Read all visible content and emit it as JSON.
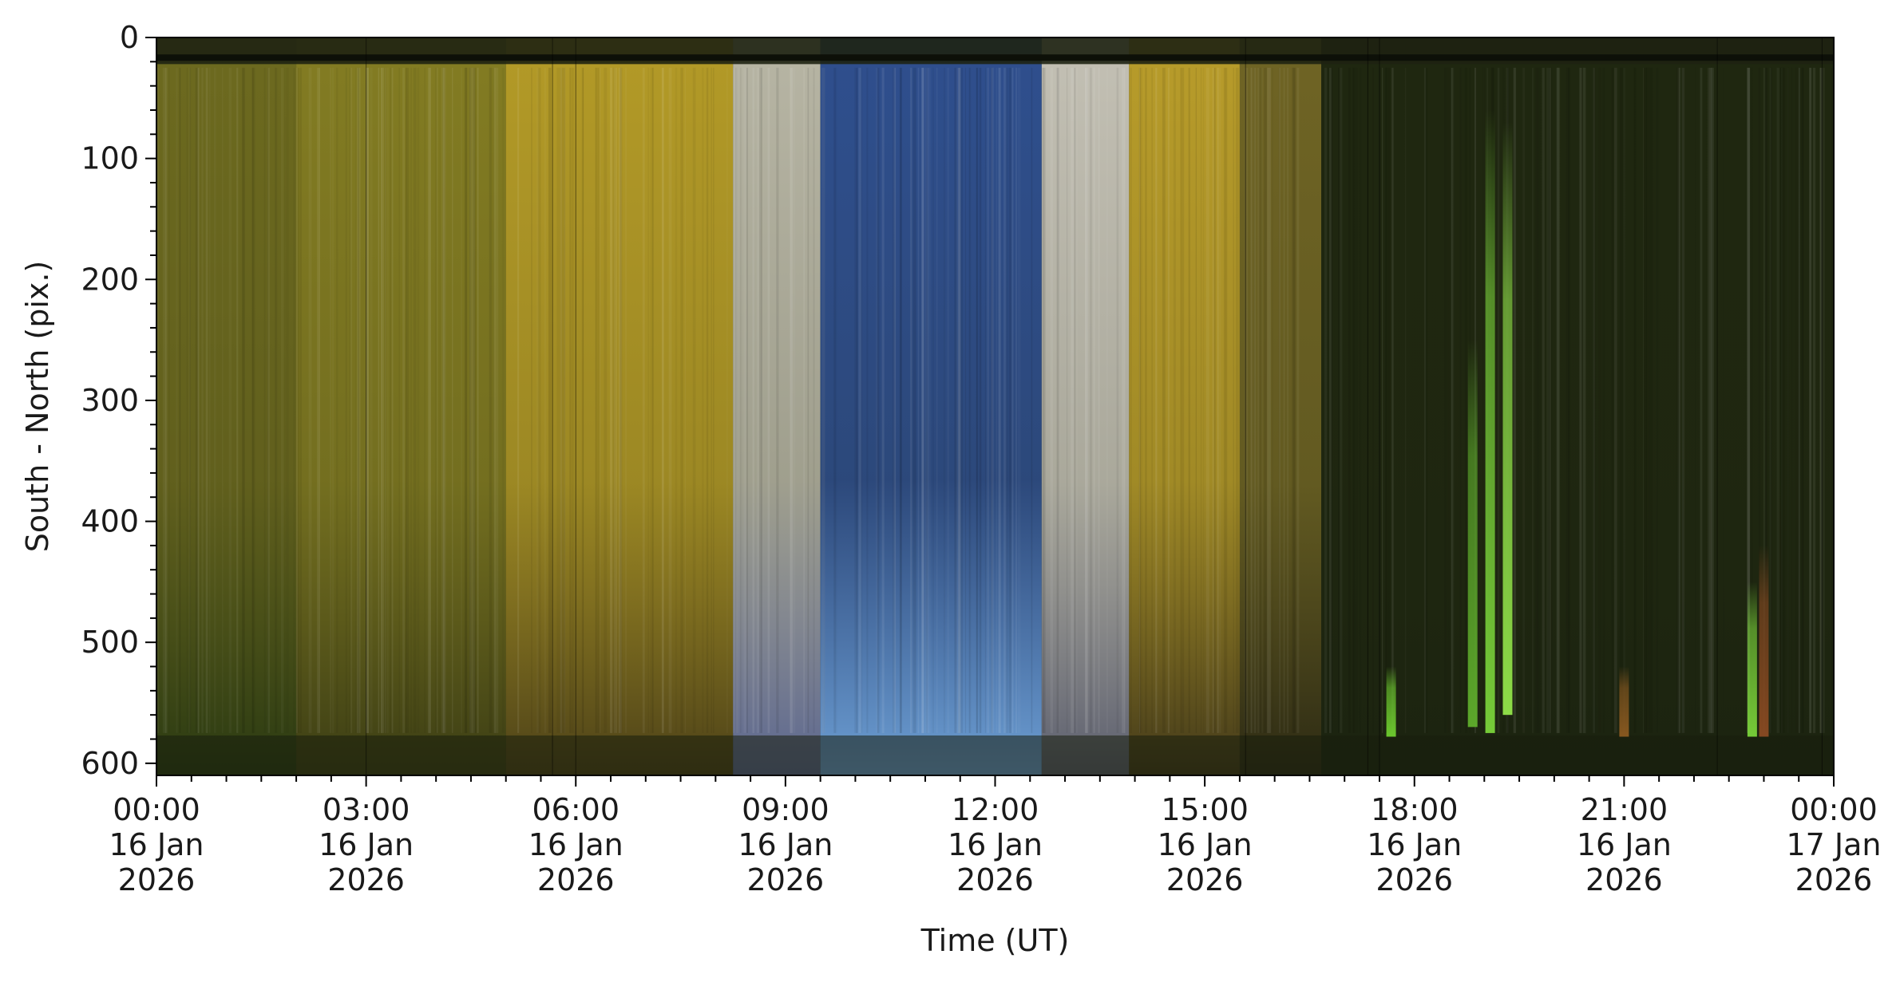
{
  "chart_data": {
    "type": "heatmap",
    "description_kind": "keogram",
    "xlabel": "Time (UT)",
    "ylabel": "South - North (pix.)",
    "xlim": [
      "2026-01-16T00:00",
      "2026-01-17T00:00"
    ],
    "ylim": [
      610,
      0
    ],
    "y_inverted": true,
    "y_ticks": [
      0,
      100,
      200,
      300,
      400,
      500,
      600
    ],
    "y_minor_step": 20,
    "x_minor_step_minutes": 30,
    "x_ticks": [
      {
        "time": "2026-01-16T00:00",
        "label": [
          "00:00",
          "16 Jan",
          "2026"
        ]
      },
      {
        "time": "2026-01-16T03:00",
        "label": [
          "03:00",
          "16 Jan",
          "2026"
        ]
      },
      {
        "time": "2026-01-16T06:00",
        "label": [
          "06:00",
          "16 Jan",
          "2026"
        ]
      },
      {
        "time": "2026-01-16T09:00",
        "label": [
          "09:00",
          "16 Jan",
          "2026"
        ]
      },
      {
        "time": "2026-01-16T12:00",
        "label": [
          "12:00",
          "16 Jan",
          "2026"
        ]
      },
      {
        "time": "2026-01-16T15:00",
        "label": [
          "15:00",
          "16 Jan",
          "2026"
        ]
      },
      {
        "time": "2026-01-16T18:00",
        "label": [
          "18:00",
          "16 Jan",
          "2026"
        ]
      },
      {
        "time": "2026-01-16T21:00",
        "label": [
          "21:00",
          "16 Jan",
          "2026"
        ]
      },
      {
        "time": "2026-01-17T00:00",
        "label": [
          "00:00",
          "17 Jan",
          "2026"
        ]
      }
    ],
    "grid": false,
    "legend": "none",
    "sky_segments": [
      {
        "start": "2026-01-16T00:00",
        "end": "2026-01-16T02:00",
        "top": "#6d6a1f",
        "bottom": "#2a3a12"
      },
      {
        "start": "2026-01-16T02:00",
        "end": "2026-01-16T05:00",
        "top": "#837c22",
        "bottom": "#3b3d14"
      },
      {
        "start": "2026-01-16T05:00",
        "end": "2026-01-16T08:15",
        "top": "#b39a27",
        "bottom": "#4c4118"
      },
      {
        "start": "2026-01-16T08:15",
        "end": "2026-01-16T09:30",
        "top": "#b7b5a4",
        "bottom": "#5b6690"
      },
      {
        "start": "2026-01-16T09:30",
        "end": "2026-01-16T12:40",
        "top": "#2f4f8e",
        "bottom": "#6d9fd4"
      },
      {
        "start": "2026-01-16T12:40",
        "end": "2026-01-16T13:55",
        "top": "#c3c0b4",
        "bottom": "#5b5e6e"
      },
      {
        "start": "2026-01-16T13:55",
        "end": "2026-01-16T15:30",
        "top": "#b89c2a",
        "bottom": "#42391a"
      },
      {
        "start": "2026-01-16T15:30",
        "end": "2026-01-16T16:40",
        "top": "#6f6424",
        "bottom": "#2c2a14"
      },
      {
        "start": "2026-01-16T16:40",
        "end": "2026-01-17T00:00",
        "top": "#1f2710",
        "bottom": "#1c2410"
      }
    ],
    "aurora_arcs": [
      {
        "time": "2026-01-16T19:05",
        "top_pix": 60,
        "bottom_pix": 575,
        "color": "#7ad33a"
      },
      {
        "time": "2026-01-16T19:20",
        "top_pix": 70,
        "bottom_pix": 560,
        "color": "#93e54a"
      },
      {
        "time": "2026-01-16T18:50",
        "top_pix": 250,
        "bottom_pix": 570,
        "color": "#5fae2c"
      },
      {
        "time": "2026-01-16T17:40",
        "top_pix": 520,
        "bottom_pix": 578,
        "color": "#6fcf2f"
      },
      {
        "time": "2026-01-16T22:50",
        "top_pix": 450,
        "bottom_pix": 578,
        "color": "#7ad33a"
      },
      {
        "time": "2026-01-16T21:00",
        "top_pix": 520,
        "bottom_pix": 578,
        "color": "#8c5a20"
      },
      {
        "time": "2026-01-16T23:00",
        "top_pix": 420,
        "bottom_pix": 578,
        "color": "#8a4a22"
      }
    ]
  }
}
